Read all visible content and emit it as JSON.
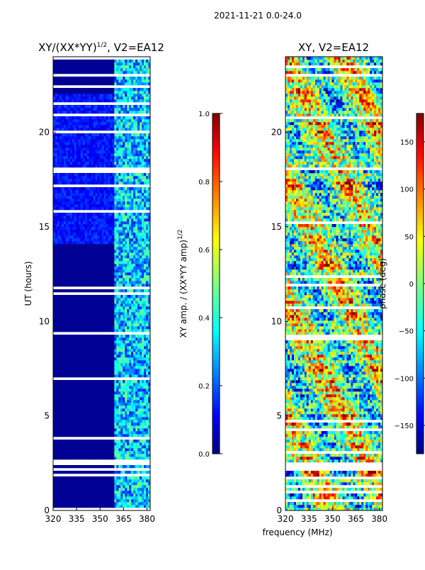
{
  "figure": {
    "suptitle": "2021-11-21 0.0-24.0",
    "xlabel": "frequency (MHz)"
  },
  "chart_data": [
    {
      "type": "heatmap",
      "id": "amp",
      "title": "XY/(XX*YY)",
      "title_exponent": "1/2",
      "title_suffix": ", V2=EA12",
      "ylabel": "UT (hours)",
      "xlim": [
        320,
        382
      ],
      "ylim": [
        0,
        24
      ],
      "xticks": [
        320,
        335,
        350,
        365,
        380
      ],
      "yticks": [
        0,
        5,
        10,
        15,
        20
      ],
      "active_band_mhz": [
        359,
        382
      ],
      "colorbar": {
        "label": "XY amp. / (XX*YY amp)",
        "label_exponent": "1/2",
        "range": [
          0.0,
          1.0
        ],
        "ticks": [
          "0.0",
          "0.2",
          "0.4",
          "0.6",
          "0.8",
          "1.0"
        ],
        "colormap": "jet"
      }
    },
    {
      "type": "heatmap",
      "id": "phase",
      "title": "XY, V2=EA12",
      "ylabel": "",
      "xlim": [
        320,
        382
      ],
      "ylim": [
        0,
        24
      ],
      "xticks": [
        320,
        335,
        350,
        365,
        380
      ],
      "yticks": [
        0,
        5,
        10,
        15,
        20
      ],
      "colorbar": {
        "label": "phase (deg)",
        "range": [
          -180,
          180
        ],
        "ticks": [
          "−150",
          "−100",
          "−50",
          "0",
          "50",
          "100",
          "150"
        ],
        "colormap": "jet"
      }
    }
  ],
  "colors": {
    "jet": [
      "#00007f",
      "#0000ff",
      "#007fff",
      "#00ffff",
      "#7fff7f",
      "#ffff00",
      "#ff7f00",
      "#ff0000",
      "#7f0000"
    ],
    "gap": "#ffffff"
  }
}
